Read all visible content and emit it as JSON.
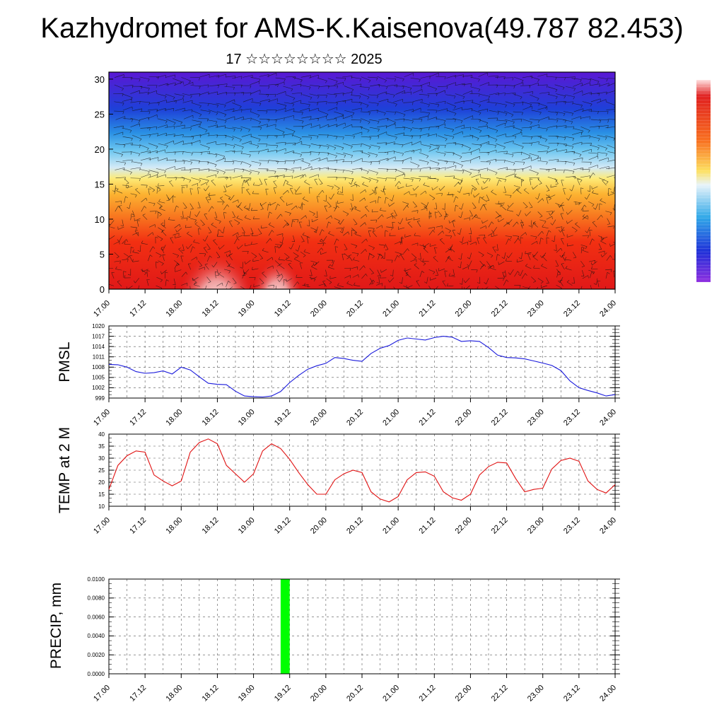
{
  "title": "Kazhydromet for AMS-K.Kaisenova(49.787 82.453)",
  "subtitle": "17 ☆☆☆☆☆☆☆☆ 2025",
  "colors": {
    "pmsl_line": "#1a1adc",
    "temp_line": "#e01010",
    "precip_bar": "#00ff00",
    "grid": "#555555"
  },
  "chart_data": [
    {
      "id": "cross-section",
      "type": "heatmap",
      "description_variable": "filled contours with wind barbs",
      "x_ticks": [
        "17.00",
        "17.12",
        "18.00",
        "18.12",
        "19.00",
        "19.12",
        "20.00",
        "20.12",
        "21.00",
        "21.12",
        "22.00",
        "22.12",
        "23.00",
        "23.12",
        "24.00"
      ],
      "y_ticks": [
        "0",
        "5",
        "10",
        "15",
        "20",
        "25",
        "30"
      ],
      "ylim": [
        0,
        31
      ],
      "colorbar": [
        "#ffe6e6",
        "#f4b0b0",
        "#e02020",
        "#f04010",
        "#f87020",
        "#fca030",
        "#fde060",
        "#fff8a0",
        "#d8ecf8",
        "#80d0f4",
        "#30a8e8",
        "#1a70e0",
        "#2030d8",
        "#5010d0",
        "#9030e0"
      ]
    },
    {
      "id": "pmsl",
      "type": "line",
      "ylabel": "PMSL",
      "x_ticks": [
        "17.00",
        "17.12",
        "18.00",
        "18.12",
        "19.00",
        "19.12",
        "20.00",
        "20.12",
        "21.00",
        "21.12",
        "22.00",
        "22.12",
        "23.00",
        "23.12",
        "24.00"
      ],
      "y_ticks": [
        "999",
        "1002",
        "1005",
        "1008",
        "1011",
        "1014",
        "1017",
        "1020"
      ],
      "ylim": [
        999,
        1020
      ],
      "x": [
        0,
        3,
        6,
        9,
        12,
        15,
        18,
        21,
        24,
        27,
        30,
        33,
        36,
        39,
        42,
        45,
        48,
        51,
        54,
        57,
        60,
        63,
        66,
        69,
        72,
        75,
        78,
        81,
        84,
        87,
        90,
        93,
        96,
        99,
        102,
        105,
        108,
        111,
        114,
        117,
        120,
        123,
        126,
        129,
        132,
        135,
        138,
        141,
        144,
        147,
        150,
        153,
        156,
        159,
        162,
        165,
        168
      ],
      "values": [
        1008.8,
        1008.7,
        1008.0,
        1006.7,
        1006.2,
        1006.4,
        1006.9,
        1006.0,
        1008.0,
        1007.2,
        1005.2,
        1003.3,
        1003.0,
        1002.9,
        1001.0,
        999.6,
        999.4,
        999.3,
        999.6,
        1000.9,
        1003.5,
        1005.6,
        1007.4,
        1008.4,
        1009.1,
        1010.8,
        1010.5,
        1010.0,
        1009.7,
        1012.0,
        1013.5,
        1014.3,
        1015.8,
        1016.5,
        1016.2,
        1015.9,
        1016.6,
        1017.0,
        1016.7,
        1015.5,
        1015.7,
        1015.5,
        1013.7,
        1011.5,
        1010.8,
        1010.7,
        1010.4,
        1009.8,
        1009.2,
        1008.5,
        1007.0,
        1004.0,
        1002.0,
        1001.2,
        1000.5,
        999.6,
        1000.0
      ]
    },
    {
      "id": "temp",
      "type": "line",
      "ylabel": "TEMP at 2 M",
      "x_ticks": [
        "17.00",
        "17.12",
        "18.00",
        "18.12",
        "19.00",
        "19.12",
        "20.00",
        "20.12",
        "21.00",
        "21.12",
        "22.00",
        "22.12",
        "23.00",
        "23.12",
        "24.00"
      ],
      "y_ticks": [
        "10",
        "15",
        "20",
        "25",
        "30",
        "35",
        "40"
      ],
      "ylim": [
        10,
        40
      ],
      "x": [
        0,
        3,
        6,
        9,
        12,
        15,
        18,
        21,
        24,
        27,
        30,
        33,
        36,
        39,
        42,
        45,
        48,
        51,
        54,
        57,
        60,
        63,
        66,
        69,
        72,
        75,
        78,
        81,
        84,
        87,
        90,
        93,
        96,
        99,
        102,
        105,
        108,
        111,
        114,
        117,
        120,
        123,
        126,
        129,
        132,
        135,
        138,
        141,
        144,
        147,
        150,
        153,
        156,
        159,
        162,
        165,
        168
      ],
      "values": [
        17,
        27,
        31,
        33,
        32.5,
        23,
        20.5,
        18.5,
        20.5,
        32.5,
        36.5,
        38,
        36,
        27,
        23.5,
        20,
        23.5,
        33,
        36,
        34,
        29.5,
        24,
        19,
        15,
        15,
        21,
        23.5,
        25,
        24,
        16,
        13,
        11.8,
        14,
        21,
        24,
        24.3,
        22.5,
        16,
        13.5,
        12.5,
        15,
        23,
        26.5,
        28.3,
        28,
        21.5,
        16,
        17,
        17.5,
        25.5,
        29,
        30,
        28.7,
        20.5,
        17,
        15.5,
        19
      ]
    },
    {
      "id": "precip",
      "type": "bar",
      "ylabel": "PRECIP, mm",
      "x_ticks": [
        "17.00",
        "17.12",
        "18.00",
        "18.12",
        "19.00",
        "19.12",
        "20.00",
        "20.12",
        "21.00",
        "21.12",
        "22.00",
        "22.12",
        "23.00",
        "23.12",
        "24.00"
      ],
      "y_ticks": [
        "0.0000",
        "0.0020",
        "0.0040",
        "0.0060",
        "0.0080",
        "0.0100"
      ],
      "ylim": [
        0,
        0.01
      ],
      "bars": [
        {
          "x_start": 57,
          "x_end": 60,
          "value": 0.01
        }
      ]
    }
  ]
}
